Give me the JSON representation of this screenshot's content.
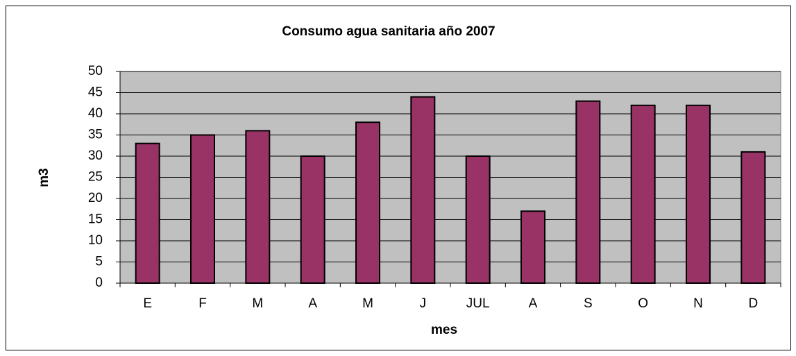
{
  "chart_data": {
    "type": "bar",
    "title": "Consumo agua sanitaria año 2007",
    "xlabel": "mes",
    "ylabel": "m3",
    "categories": [
      "E",
      "F",
      "M",
      "A",
      "M",
      "J",
      "JUL",
      "A",
      "S",
      "O",
      "N",
      "D"
    ],
    "values": [
      33,
      35,
      36,
      30,
      38,
      44,
      30,
      17,
      43,
      42,
      42,
      31
    ],
    "color": "#993366",
    "ylim": [
      0,
      50
    ],
    "yticks": [
      0,
      5,
      10,
      15,
      20,
      25,
      30,
      35,
      40,
      45,
      50
    ],
    "grid": true
  }
}
